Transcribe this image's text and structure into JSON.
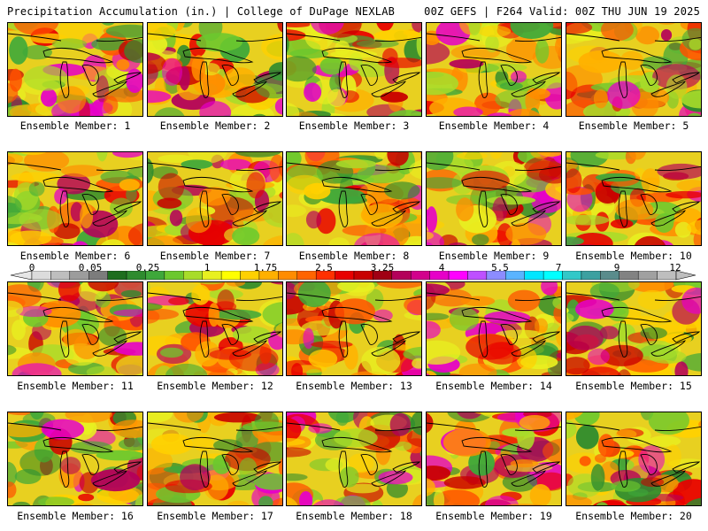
{
  "header": {
    "left": "Precipitation Accumulation (in.) | College of DuPage NEXLAB",
    "right": "00Z GEFS | F264 Valid: 00Z THU JUN 19 2025"
  },
  "legend": {
    "ticks": [
      "0",
      "0.05",
      "0.25",
      "1",
      "1.75",
      "2.5",
      "3.25",
      "4",
      "5.5",
      "7",
      "9",
      "12"
    ],
    "colors": [
      "#dcdcdc",
      "#bebebe",
      "#9c9c9c",
      "#7c7c7c",
      "#1e6e1e",
      "#2e8b2e",
      "#3ea83a",
      "#6cc82e",
      "#a8dc2a",
      "#e8f020",
      "#ffff00",
      "#ffd000",
      "#ffb000",
      "#ff8c00",
      "#ff6400",
      "#ff3000",
      "#e80000",
      "#c80000",
      "#a00014",
      "#b4005a",
      "#d2008c",
      "#e600c8",
      "#ff00ff",
      "#be50ff",
      "#8c8cff",
      "#5ab4ff",
      "#00e6ff",
      "#00ffff",
      "#32c8c8",
      "#3ca0a0",
      "#5a8c8c",
      "#828282",
      "#a0a0a0",
      "#bebebe"
    ]
  },
  "members": [
    {
      "label": "Ensemble Member: 1"
    },
    {
      "label": "Ensemble Member: 2"
    },
    {
      "label": "Ensemble Member: 3"
    },
    {
      "label": "Ensemble Member: 4"
    },
    {
      "label": "Ensemble Member: 5"
    },
    {
      "label": "Ensemble Member: 6"
    },
    {
      "label": "Ensemble Member: 7"
    },
    {
      "label": "Ensemble Member: 8"
    },
    {
      "label": "Ensemble Member: 9"
    },
    {
      "label": "Ensemble Member: 10"
    },
    {
      "label": "Ensemble Member: 11"
    },
    {
      "label": "Ensemble Member: 12"
    },
    {
      "label": "Ensemble Member: 13"
    },
    {
      "label": "Ensemble Member: 14"
    },
    {
      "label": "Ensemble Member: 15"
    },
    {
      "label": "Ensemble Member: 16"
    },
    {
      "label": "Ensemble Member: 17"
    },
    {
      "label": "Ensemble Member: 18"
    },
    {
      "label": "Ensemble Member: 19"
    },
    {
      "label": "Ensemble Member: 20"
    }
  ]
}
